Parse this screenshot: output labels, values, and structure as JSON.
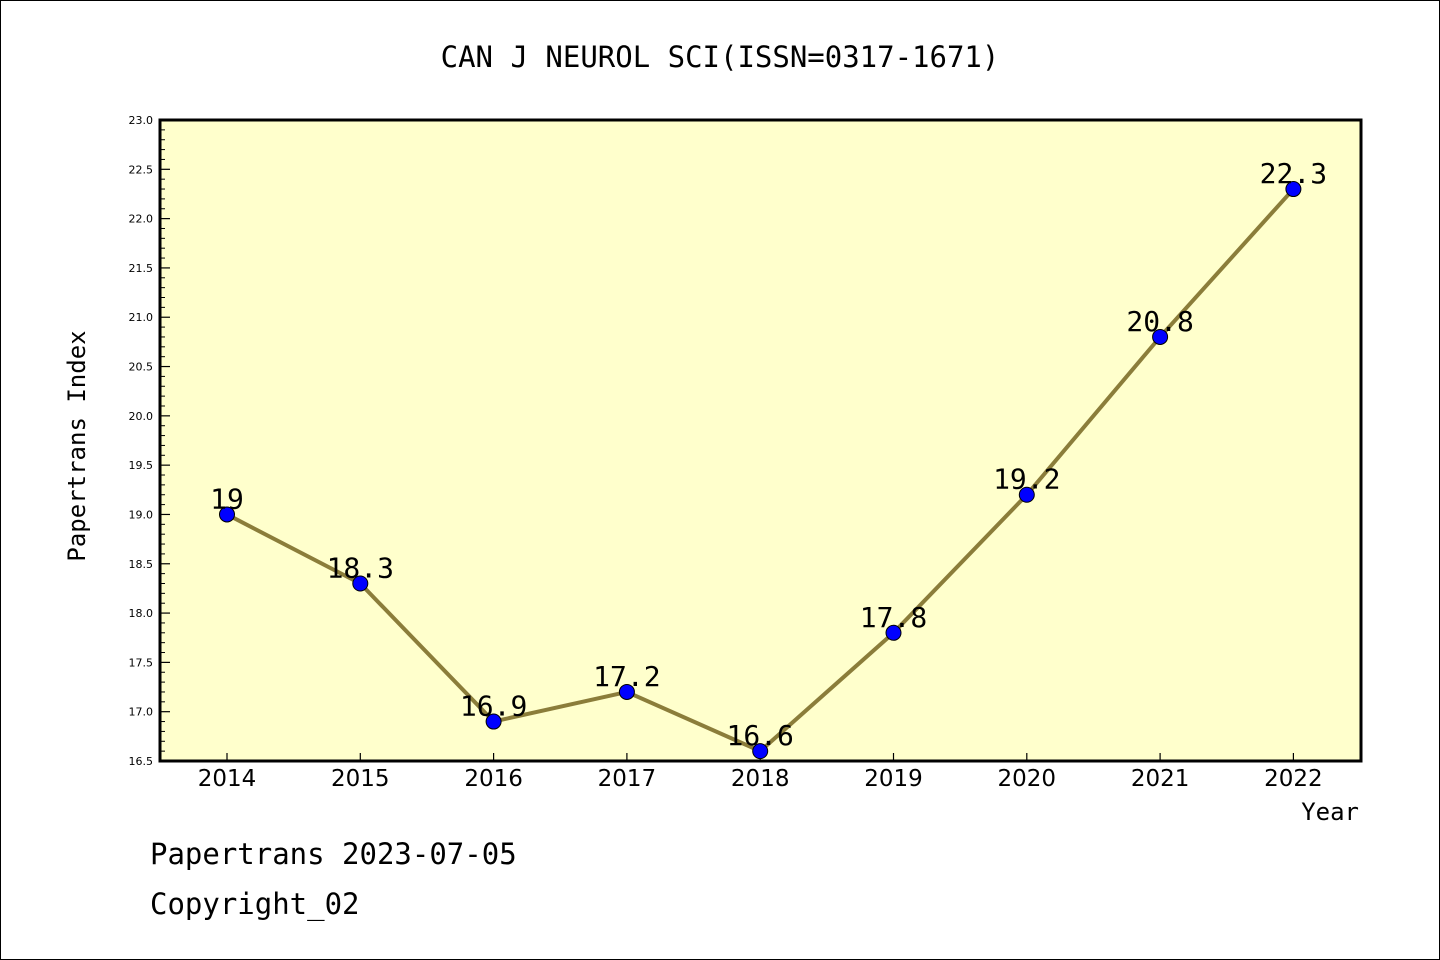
{
  "chart_data": {
    "type": "line",
    "title": "CAN J NEUROL SCI(ISSN=0317-1671)",
    "xlabel": "Year",
    "ylabel": "Papertrans Index",
    "categories": [
      "2014",
      "2015",
      "2016",
      "2017",
      "2018",
      "2019",
      "2020",
      "2021",
      "2022"
    ],
    "values": [
      19,
      18.3,
      16.9,
      17.2,
      16.6,
      17.8,
      19.2,
      20.8,
      22.3
    ],
    "data_labels": [
      "19",
      "18.3",
      "16.9",
      "17.2",
      "16.6",
      "17.8",
      "19.2",
      "20.8",
      "22.3"
    ],
    "ylim": [
      16.5,
      23.0
    ],
    "y_ticks": [
      "16.5",
      "17.0",
      "17.5",
      "18.0",
      "18.5",
      "19.0",
      "19.5",
      "20.0",
      "20.5",
      "21.0",
      "21.5",
      "22.0",
      "22.5",
      "23.0"
    ],
    "grid": false,
    "legend": "none",
    "colors": {
      "plot_background": "#ffffcc",
      "line": "#8b7d3a",
      "marker": "#0000ff"
    }
  },
  "footer": {
    "line1": "Papertrans 2023-07-05",
    "line2": "Copyright_02"
  }
}
